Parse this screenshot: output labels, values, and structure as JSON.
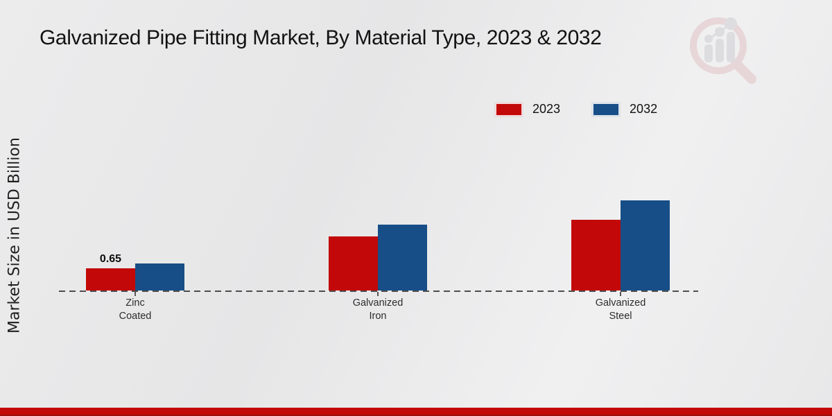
{
  "page": {
    "title": "Galvanized Pipe Fitting Market, By Material Type, 2023 & 2032",
    "ylabel": "Market Size in USD Billion"
  },
  "colors": {
    "series_2023": "#c20808",
    "series_2032": "#174e87",
    "footer": "#c30808"
  },
  "chart_data": {
    "type": "bar",
    "title": "Galvanized Pipe Fitting Market, By Material Type, 2023 & 2032",
    "xlabel": "",
    "ylabel": "Market Size in USD Billion",
    "categories": [
      "Zinc Coated",
      "Galvanized Iron",
      "Galvanized Steel"
    ],
    "category_lines": [
      [
        "Zinc",
        "Coated"
      ],
      [
        "Galvanized",
        "Iron"
      ],
      [
        "Galvanized",
        "Steel"
      ]
    ],
    "series": [
      {
        "name": "2023",
        "color": "#c20808",
        "values": [
          0.65,
          1.58,
          2.07
        ]
      },
      {
        "name": "2032",
        "color": "#174e87",
        "values": [
          0.8,
          1.93,
          2.64
        ]
      }
    ],
    "annotations": [
      {
        "series_index": 0,
        "category_index": 0,
        "text": "0.65"
      }
    ],
    "ylim": [
      0,
      3
    ],
    "grid": false,
    "axis_style": "dashed-baseline-only",
    "legend_position": "top-right"
  },
  "legend": {
    "items": [
      {
        "label": "2023",
        "color": "#c20808"
      },
      {
        "label": "2032",
        "color": "#174e87"
      }
    ]
  },
  "watermark": {
    "icon": "magnifier-bar-chart-logo"
  }
}
